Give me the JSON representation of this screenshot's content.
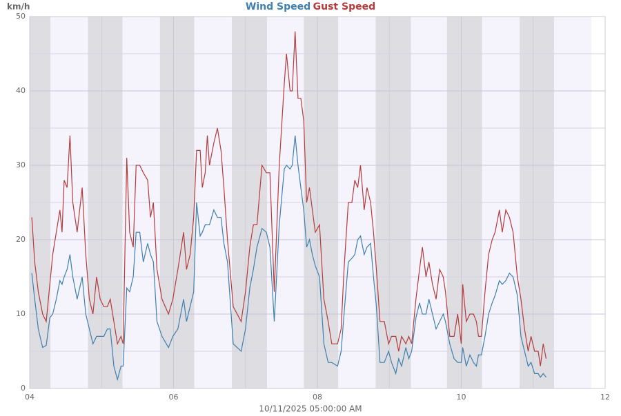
{
  "chart_data": {
    "type": "line",
    "y_label": "km/h",
    "x_label": "10/11/2025 05:00:00 AM",
    "xlim": [
      4,
      12
    ],
    "xticks": [
      {
        "value": 4,
        "label": "04"
      },
      {
        "value": 6,
        "label": "06"
      },
      {
        "value": 8,
        "label": "08"
      },
      {
        "value": 10,
        "label": "10"
      },
      {
        "value": 12,
        "label": "12"
      }
    ],
    "xminorticks": [
      5,
      7,
      9,
      11
    ],
    "ylim": [
      0,
      50
    ],
    "yticks": [
      0,
      10,
      20,
      30,
      40,
      50
    ],
    "yminorticks": [
      5,
      15,
      25,
      35,
      45
    ],
    "grid": true,
    "night_ranges": [
      [
        4,
        4.29
      ],
      [
        4.81,
        5.29
      ],
      [
        5.81,
        6.29
      ],
      [
        6.81,
        7.3
      ],
      [
        7.81,
        8.29
      ],
      [
        8.81,
        9.3
      ],
      [
        9.8,
        10.29
      ],
      [
        10.81,
        11.29
      ]
    ],
    "day_ranges": [
      [
        4.29,
        4.81
      ],
      [
        5.29,
        5.81
      ],
      [
        6.29,
        6.81
      ],
      [
        7.3,
        7.81
      ],
      [
        8.29,
        8.81
      ],
      [
        9.3,
        9.8
      ],
      [
        10.29,
        10.81
      ],
      [
        11.29,
        11.81
      ]
    ],
    "night_color": "#dddde2",
    "day_color": "#f5f3fc",
    "x": [
      4.03,
      4.07,
      4.12,
      4.18,
      4.23,
      4.28,
      4.32,
      4.37,
      4.42,
      4.45,
      4.48,
      4.52,
      4.56,
      4.6,
      4.66,
      4.73,
      4.78,
      4.83,
      4.88,
      4.93,
      4.98,
      5.03,
      5.08,
      5.12,
      5.17,
      5.22,
      5.27,
      5.3,
      5.35,
      5.39,
      5.44,
      5.48,
      5.53,
      5.58,
      5.64,
      5.68,
      5.72,
      5.77,
      5.84,
      5.93,
      5.99,
      6.06,
      6.14,
      6.18,
      6.23,
      6.28,
      6.32,
      6.37,
      6.4,
      6.44,
      6.47,
      6.5,
      6.56,
      6.61,
      6.66,
      6.7,
      6.75,
      6.83,
      6.94,
      7.0,
      7.06,
      7.11,
      7.16,
      7.23,
      7.29,
      7.34,
      7.4,
      7.47,
      7.54,
      7.57,
      7.62,
      7.65,
      7.69,
      7.73,
      7.77,
      7.81,
      7.85,
      7.89,
      7.93,
      7.97,
      8.03,
      8.09,
      8.15,
      8.2,
      8.28,
      8.33,
      8.37,
      8.43,
      8.48,
      8.52,
      8.56,
      8.6,
      8.65,
      8.69,
      8.74,
      8.78,
      8.82,
      8.87,
      8.93,
      8.99,
      9.03,
      9.09,
      9.13,
      9.17,
      9.23,
      9.27,
      9.31,
      9.37,
      9.42,
      9.46,
      9.51,
      9.55,
      9.6,
      9.65,
      9.7,
      9.75,
      9.78,
      9.84,
      9.9,
      9.95,
      10.0,
      10.02,
      10.07,
      10.12,
      10.17,
      10.21,
      10.24,
      10.28,
      10.33,
      10.38,
      10.43,
      10.47,
      10.53,
      10.57,
      10.62,
      10.67,
      10.72,
      10.78,
      10.83,
      10.88,
      10.93,
      10.97,
      11.02,
      11.07,
      11.1,
      11.14,
      11.18
    ],
    "series": [
      {
        "name": "Wind Speed",
        "color": "#3d7fae",
        "values": [
          15.5,
          12,
          8,
          5.5,
          5.8,
          9.5,
          10,
          12,
          14.5,
          14,
          15,
          16,
          18,
          15,
          12,
          15,
          10,
          8,
          6,
          7,
          7,
          7,
          8,
          8,
          3,
          1.2,
          3,
          3,
          13.5,
          13,
          15,
          21,
          21,
          17,
          19.5,
          18,
          17,
          9,
          7,
          5.5,
          7,
          8,
          12,
          9,
          11,
          13,
          25,
          20.5,
          21,
          22,
          22,
          22,
          24,
          23,
          23,
          19.5,
          17,
          6,
          5,
          8,
          13.5,
          16,
          19,
          21.5,
          21,
          19,
          9,
          22,
          29.5,
          30,
          29.5,
          30,
          34,
          30,
          27,
          24,
          19,
          20,
          18,
          16.5,
          15,
          6,
          3.5,
          3.5,
          3,
          5,
          10,
          17,
          17.5,
          18,
          20,
          20.5,
          18,
          19,
          19.5,
          15,
          11,
          3.5,
          3.5,
          5,
          3.5,
          2,
          4,
          3,
          5.5,
          4,
          5,
          9.5,
          11.5,
          10,
          10,
          12,
          10,
          8,
          9,
          10,
          9,
          6,
          4,
          3.5,
          3.5,
          5.5,
          3,
          4.5,
          3.5,
          3,
          4.5,
          4.5,
          7,
          10,
          11.5,
          12.5,
          14.5,
          14,
          14.5,
          15.5,
          15,
          12.5,
          7,
          5,
          3,
          3.5,
          2,
          2,
          1.5,
          2,
          1.5
        ]
      },
      {
        "name": "Gust Speed",
        "color": "#b53a3c",
        "values": [
          23,
          17,
          13,
          10,
          9,
          14,
          18,
          21,
          24,
          21,
          28,
          27,
          34,
          25,
          21,
          27,
          18,
          12,
          10,
          15,
          12,
          11,
          11,
          12,
          9,
          6,
          7,
          6,
          31,
          21,
          19,
          30,
          30,
          29,
          28,
          23,
          25,
          16,
          12,
          10,
          12,
          16,
          21,
          16,
          18,
          23,
          32,
          32,
          27,
          29,
          34,
          30,
          33,
          35,
          32,
          27,
          20,
          11,
          9,
          13,
          19,
          22,
          22,
          30,
          29,
          29,
          13,
          30,
          41,
          45,
          40,
          40,
          48,
          39,
          39,
          36,
          25,
          27,
          24,
          21,
          22,
          12,
          9,
          6,
          6,
          8,
          16,
          25,
          25,
          28,
          27,
          30,
          24,
          27,
          25,
          21,
          16,
          9,
          9,
          6,
          7,
          7,
          5,
          7,
          6,
          7,
          6,
          12,
          16,
          19,
          15,
          17,
          14,
          12,
          16,
          15,
          13,
          7,
          7,
          10,
          6,
          14,
          9,
          10,
          10,
          9,
          7,
          7,
          13,
          18,
          20,
          21,
          24,
          21,
          24,
          23,
          21,
          15,
          12,
          8,
          5,
          7,
          5,
          5,
          3,
          6,
          4
        ]
      }
    ]
  }
}
